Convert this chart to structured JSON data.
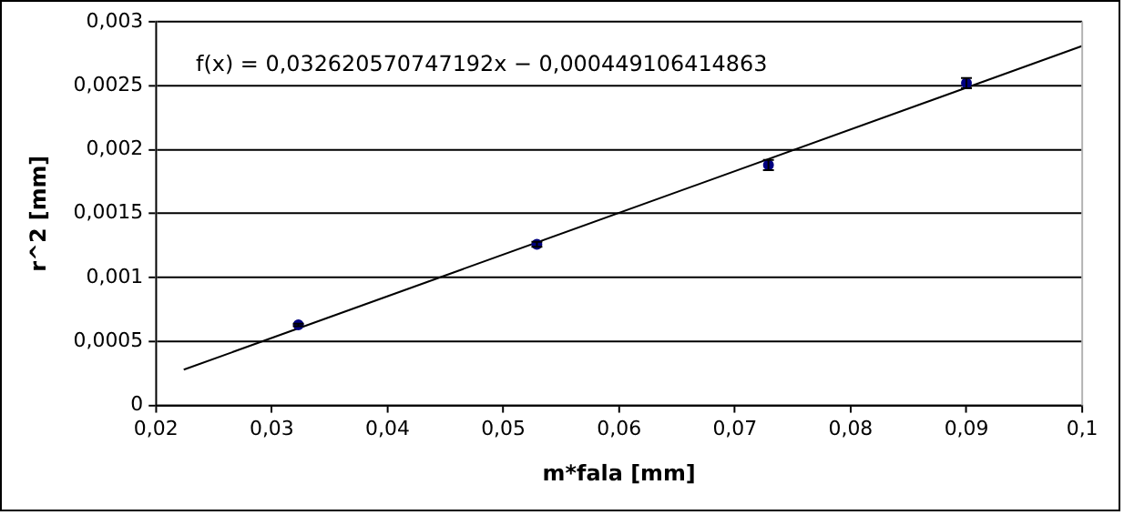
{
  "chart_data": {
    "type": "scatter",
    "xlabel": "m*fala [mm]",
    "ylabel": "r^2 [mm]",
    "annotations": [
      "f(x) = 0,032620570747192x − 0,000449106414863"
    ],
    "xlim": [
      0.02,
      0.1
    ],
    "xticks": [
      {
        "value": 0.02,
        "label": "0,02"
      },
      {
        "value": 0.03,
        "label": "0,03"
      },
      {
        "value": 0.04,
        "label": "0,04"
      },
      {
        "value": 0.05,
        "label": "0,05"
      },
      {
        "value": 0.06,
        "label": "0,06"
      },
      {
        "value": 0.07,
        "label": "0,07"
      },
      {
        "value": 0.08,
        "label": "0,08"
      },
      {
        "value": 0.09,
        "label": "0,09"
      },
      {
        "value": 0.1,
        "label": "0,1"
      }
    ],
    "ylim": [
      0,
      0.003
    ],
    "yticks": [
      0,
      {
        "value": 0.0005,
        "label": "0,0005"
      },
      {
        "value": 0.001,
        "label": "0,001"
      },
      {
        "value": 0.0015,
        "label": "0,0015"
      },
      {
        "value": 0.002,
        "label": "0,002"
      },
      {
        "value": 0.0025,
        "label": "0,0025"
      },
      {
        "value": 0.003,
        "label": "0,003"
      }
    ],
    "grid": "y",
    "legend": false,
    "series": [
      {
        "type": "scatter",
        "marker": "circle",
        "color": "#000080",
        "x": [
          0.0323,
          0.0529,
          0.0729,
          0.09
        ],
        "values": [
          0.00063,
          0.00126,
          0.00188,
          0.00252
        ],
        "errors": [
          1e-05,
          2e-05,
          4e-05,
          4e-05
        ]
      },
      {
        "type": "line",
        "marker": "none",
        "color": "#000000",
        "x": [
          0.0224,
          0.1
        ],
        "values": [
          0.00028,
          0.00281
        ]
      }
    ]
  }
}
